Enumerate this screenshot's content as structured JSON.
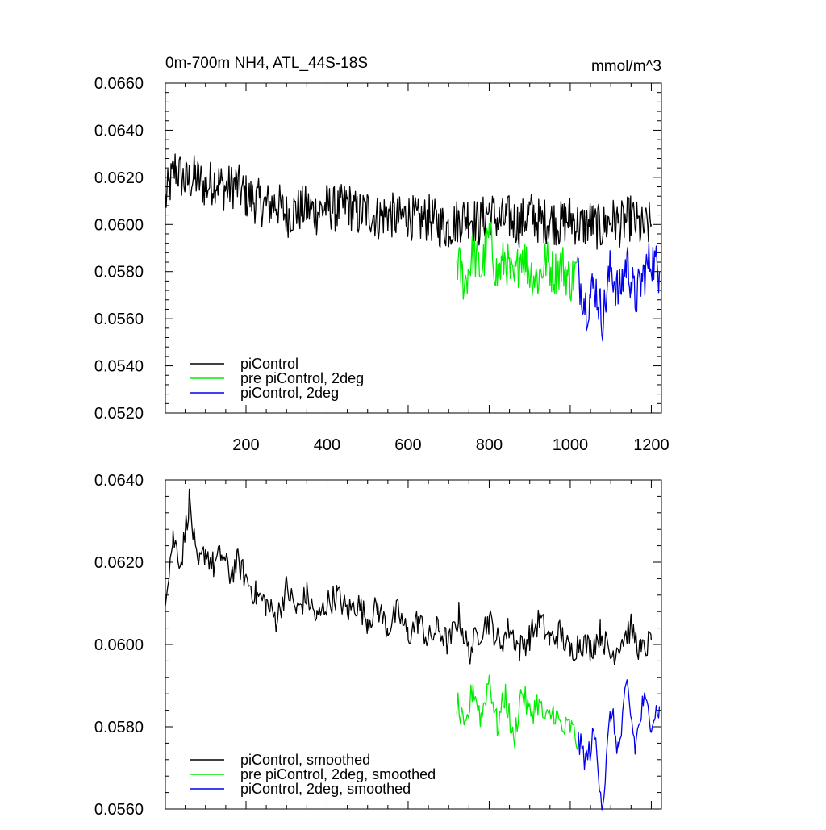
{
  "chart_data": [
    {
      "type": "line",
      "title_left": "0m-700m NH4, ATL_44S-18S",
      "title_right": "mmol/m^3",
      "xlim": [
        1,
        1225
      ],
      "ylim": [
        0.052,
        0.066
      ],
      "x_ticks": [
        200,
        400,
        600,
        800,
        1000,
        1200
      ],
      "x_tick_labels": [
        "200",
        "400",
        "600",
        "800",
        "1000",
        "1200"
      ],
      "y_ticks": [
        0.052,
        0.054,
        0.056,
        0.058,
        0.06,
        0.062,
        0.064,
        0.066
      ],
      "y_tick_labels": [
        "0.0520",
        "0.0540",
        "0.0560",
        "0.0580",
        "0.0600",
        "0.0620",
        "0.0640",
        "0.0660"
      ],
      "legend_position": "bottom-left",
      "series": [
        {
          "name": "piControl",
          "color": "#000000",
          "x": [
            1,
            25,
            50,
            75,
            100,
            125,
            150,
            175,
            200,
            225,
            250,
            275,
            300,
            325,
            350,
            375,
            400,
            425,
            450,
            475,
            500,
            525,
            550,
            575,
            600,
            625,
            650,
            675,
            700,
            725,
            750,
            775,
            800,
            825,
            850,
            875,
            900,
            925,
            950,
            975,
            1000,
            1025,
            1050,
            1075,
            1100,
            1125,
            1150,
            1175,
            1200
          ],
          "values": [
            0.061,
            0.0624,
            0.0618,
            0.062,
            0.0616,
            0.0619,
            0.0615,
            0.0617,
            0.0612,
            0.061,
            0.0608,
            0.0609,
            0.0604,
            0.0606,
            0.0607,
            0.0605,
            0.0608,
            0.0606,
            0.0609,
            0.0604,
            0.0606,
            0.0603,
            0.0605,
            0.0602,
            0.0604,
            0.0601,
            0.0603,
            0.06,
            0.0599,
            0.0602,
            0.0604,
            0.06,
            0.0606,
            0.0601,
            0.0603,
            0.06,
            0.0605,
            0.0601,
            0.0602,
            0.06,
            0.0603,
            0.0599,
            0.0601,
            0.0598,
            0.0602,
            0.06,
            0.0603,
            0.0598,
            0.06
          ]
        },
        {
          "name": "pre piControl, 2deg",
          "color": "#00ee00",
          "x": [
            720,
            740,
            760,
            780,
            800,
            820,
            840,
            860,
            880,
            900,
            920,
            940,
            960,
            980,
            1000,
            1020
          ],
          "values": [
            0.0585,
            0.0575,
            0.0588,
            0.058,
            0.0595,
            0.0578,
            0.0586,
            0.0574,
            0.0589,
            0.058,
            0.0577,
            0.0585,
            0.0579,
            0.0583,
            0.0576,
            0.0582
          ]
        },
        {
          "name": "piControl, 2deg",
          "color": "#0000ee",
          "x": [
            1020,
            1040,
            1060,
            1080,
            1100,
            1120,
            1140,
            1160,
            1180,
            1200,
            1220
          ],
          "values": [
            0.0578,
            0.0565,
            0.0575,
            0.056,
            0.0582,
            0.057,
            0.0585,
            0.0568,
            0.0578,
            0.0586,
            0.058
          ]
        }
      ]
    },
    {
      "type": "line",
      "xlim": [
        1,
        1225
      ],
      "ylim": [
        0.056,
        0.064
      ],
      "y_ticks": [
        0.056,
        0.058,
        0.06,
        0.062,
        0.064
      ],
      "y_tick_labels": [
        "0.0560",
        "0.0580",
        "0.0600",
        "0.0620",
        "0.0640"
      ],
      "legend_position": "bottom-left",
      "series": [
        {
          "name": "piControl, smoothed",
          "color": "#000000",
          "x": [
            1,
            20,
            40,
            60,
            80,
            100,
            120,
            140,
            160,
            180,
            200,
            225,
            250,
            275,
            300,
            325,
            350,
            375,
            400,
            425,
            450,
            475,
            500,
            525,
            550,
            575,
            600,
            625,
            650,
            675,
            700,
            725,
            750,
            775,
            800,
            825,
            850,
            875,
            900,
            925,
            950,
            975,
            1000,
            1025,
            1050,
            1075,
            1100,
            1125,
            1150,
            1175,
            1200
          ],
          "values": [
            0.0612,
            0.0626,
            0.062,
            0.0635,
            0.0618,
            0.0623,
            0.0619,
            0.0622,
            0.0617,
            0.062,
            0.0616,
            0.0612,
            0.061,
            0.0606,
            0.0614,
            0.0608,
            0.0612,
            0.0606,
            0.061,
            0.0612,
            0.0608,
            0.061,
            0.0606,
            0.0609,
            0.0604,
            0.0608,
            0.0602,
            0.0606,
            0.0601,
            0.0604,
            0.06,
            0.0607,
            0.0598,
            0.0603,
            0.0606,
            0.06,
            0.0604,
            0.0599,
            0.0602,
            0.0606,
            0.0601,
            0.0603,
            0.0598,
            0.0601,
            0.0599,
            0.0603,
            0.0597,
            0.0601,
            0.0604,
            0.0598,
            0.0601
          ]
        },
        {
          "name": "pre piControl, 2deg, smoothed",
          "color": "#00ee00",
          "x": [
            720,
            740,
            760,
            780,
            800,
            820,
            840,
            860,
            880,
            900,
            920,
            940,
            960,
            980,
            1000,
            1020
          ],
          "values": [
            0.0586,
            0.0578,
            0.059,
            0.0582,
            0.0592,
            0.058,
            0.0588,
            0.0576,
            0.0589,
            0.0583,
            0.0586,
            0.0581,
            0.0584,
            0.0579,
            0.058,
            0.0576
          ]
        },
        {
          "name": "piControl, 2deg, smoothed",
          "color": "#0000ee",
          "x": [
            1020,
            1040,
            1060,
            1080,
            1100,
            1120,
            1140,
            1160,
            1180,
            1200,
            1220
          ],
          "values": [
            0.0576,
            0.0572,
            0.0578,
            0.0561,
            0.0584,
            0.0574,
            0.059,
            0.0575,
            0.0586,
            0.0582,
            0.0585
          ]
        }
      ]
    }
  ]
}
